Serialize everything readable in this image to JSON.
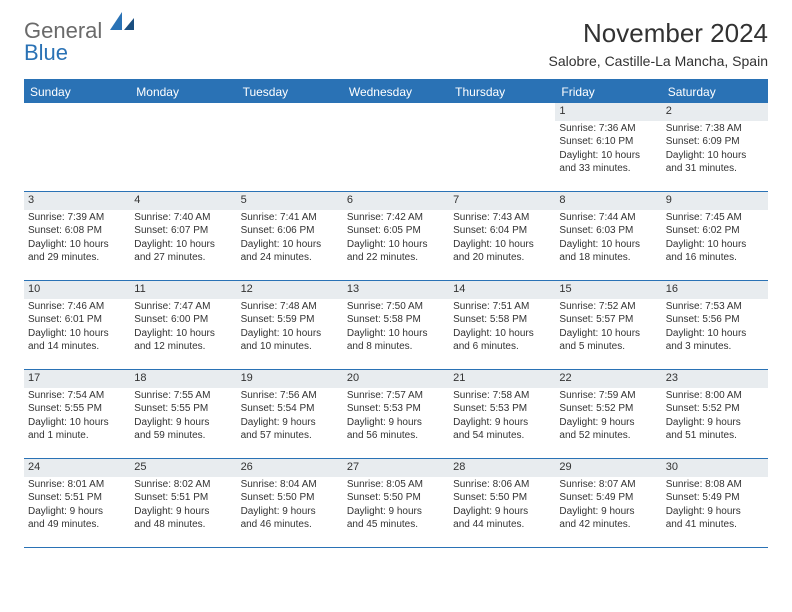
{
  "logo": {
    "line1": "General",
    "line2": "Blue"
  },
  "title": "November 2024",
  "location": "Salobre, Castille-La Mancha, Spain",
  "colors": {
    "header_bg": "#2a72b5",
    "header_text": "#ffffff",
    "datenum_bg": "#e8ecef",
    "border": "#2a72b5",
    "text": "#333333",
    "logo_gray": "#6a6a6a"
  },
  "day_names": [
    "Sunday",
    "Monday",
    "Tuesday",
    "Wednesday",
    "Thursday",
    "Friday",
    "Saturday"
  ],
  "weeks": [
    [
      null,
      null,
      null,
      null,
      null,
      {
        "date": "1",
        "sunrise": "Sunrise: 7:36 AM",
        "sunset": "Sunset: 6:10 PM",
        "day1": "Daylight: 10 hours",
        "day2": "and 33 minutes."
      },
      {
        "date": "2",
        "sunrise": "Sunrise: 7:38 AM",
        "sunset": "Sunset: 6:09 PM",
        "day1": "Daylight: 10 hours",
        "day2": "and 31 minutes."
      }
    ],
    [
      {
        "date": "3",
        "sunrise": "Sunrise: 7:39 AM",
        "sunset": "Sunset: 6:08 PM",
        "day1": "Daylight: 10 hours",
        "day2": "and 29 minutes."
      },
      {
        "date": "4",
        "sunrise": "Sunrise: 7:40 AM",
        "sunset": "Sunset: 6:07 PM",
        "day1": "Daylight: 10 hours",
        "day2": "and 27 minutes."
      },
      {
        "date": "5",
        "sunrise": "Sunrise: 7:41 AM",
        "sunset": "Sunset: 6:06 PM",
        "day1": "Daylight: 10 hours",
        "day2": "and 24 minutes."
      },
      {
        "date": "6",
        "sunrise": "Sunrise: 7:42 AM",
        "sunset": "Sunset: 6:05 PM",
        "day1": "Daylight: 10 hours",
        "day2": "and 22 minutes."
      },
      {
        "date": "7",
        "sunrise": "Sunrise: 7:43 AM",
        "sunset": "Sunset: 6:04 PM",
        "day1": "Daylight: 10 hours",
        "day2": "and 20 minutes."
      },
      {
        "date": "8",
        "sunrise": "Sunrise: 7:44 AM",
        "sunset": "Sunset: 6:03 PM",
        "day1": "Daylight: 10 hours",
        "day2": "and 18 minutes."
      },
      {
        "date": "9",
        "sunrise": "Sunrise: 7:45 AM",
        "sunset": "Sunset: 6:02 PM",
        "day1": "Daylight: 10 hours",
        "day2": "and 16 minutes."
      }
    ],
    [
      {
        "date": "10",
        "sunrise": "Sunrise: 7:46 AM",
        "sunset": "Sunset: 6:01 PM",
        "day1": "Daylight: 10 hours",
        "day2": "and 14 minutes."
      },
      {
        "date": "11",
        "sunrise": "Sunrise: 7:47 AM",
        "sunset": "Sunset: 6:00 PM",
        "day1": "Daylight: 10 hours",
        "day2": "and 12 minutes."
      },
      {
        "date": "12",
        "sunrise": "Sunrise: 7:48 AM",
        "sunset": "Sunset: 5:59 PM",
        "day1": "Daylight: 10 hours",
        "day2": "and 10 minutes."
      },
      {
        "date": "13",
        "sunrise": "Sunrise: 7:50 AM",
        "sunset": "Sunset: 5:58 PM",
        "day1": "Daylight: 10 hours",
        "day2": "and 8 minutes."
      },
      {
        "date": "14",
        "sunrise": "Sunrise: 7:51 AM",
        "sunset": "Sunset: 5:58 PM",
        "day1": "Daylight: 10 hours",
        "day2": "and 6 minutes."
      },
      {
        "date": "15",
        "sunrise": "Sunrise: 7:52 AM",
        "sunset": "Sunset: 5:57 PM",
        "day1": "Daylight: 10 hours",
        "day2": "and 5 minutes."
      },
      {
        "date": "16",
        "sunrise": "Sunrise: 7:53 AM",
        "sunset": "Sunset: 5:56 PM",
        "day1": "Daylight: 10 hours",
        "day2": "and 3 minutes."
      }
    ],
    [
      {
        "date": "17",
        "sunrise": "Sunrise: 7:54 AM",
        "sunset": "Sunset: 5:55 PM",
        "day1": "Daylight: 10 hours",
        "day2": "and 1 minute."
      },
      {
        "date": "18",
        "sunrise": "Sunrise: 7:55 AM",
        "sunset": "Sunset: 5:55 PM",
        "day1": "Daylight: 9 hours",
        "day2": "and 59 minutes."
      },
      {
        "date": "19",
        "sunrise": "Sunrise: 7:56 AM",
        "sunset": "Sunset: 5:54 PM",
        "day1": "Daylight: 9 hours",
        "day2": "and 57 minutes."
      },
      {
        "date": "20",
        "sunrise": "Sunrise: 7:57 AM",
        "sunset": "Sunset: 5:53 PM",
        "day1": "Daylight: 9 hours",
        "day2": "and 56 minutes."
      },
      {
        "date": "21",
        "sunrise": "Sunrise: 7:58 AM",
        "sunset": "Sunset: 5:53 PM",
        "day1": "Daylight: 9 hours",
        "day2": "and 54 minutes."
      },
      {
        "date": "22",
        "sunrise": "Sunrise: 7:59 AM",
        "sunset": "Sunset: 5:52 PM",
        "day1": "Daylight: 9 hours",
        "day2": "and 52 minutes."
      },
      {
        "date": "23",
        "sunrise": "Sunrise: 8:00 AM",
        "sunset": "Sunset: 5:52 PM",
        "day1": "Daylight: 9 hours",
        "day2": "and 51 minutes."
      }
    ],
    [
      {
        "date": "24",
        "sunrise": "Sunrise: 8:01 AM",
        "sunset": "Sunset: 5:51 PM",
        "day1": "Daylight: 9 hours",
        "day2": "and 49 minutes."
      },
      {
        "date": "25",
        "sunrise": "Sunrise: 8:02 AM",
        "sunset": "Sunset: 5:51 PM",
        "day1": "Daylight: 9 hours",
        "day2": "and 48 minutes."
      },
      {
        "date": "26",
        "sunrise": "Sunrise: 8:04 AM",
        "sunset": "Sunset: 5:50 PM",
        "day1": "Daylight: 9 hours",
        "day2": "and 46 minutes."
      },
      {
        "date": "27",
        "sunrise": "Sunrise: 8:05 AM",
        "sunset": "Sunset: 5:50 PM",
        "day1": "Daylight: 9 hours",
        "day2": "and 45 minutes."
      },
      {
        "date": "28",
        "sunrise": "Sunrise: 8:06 AM",
        "sunset": "Sunset: 5:50 PM",
        "day1": "Daylight: 9 hours",
        "day2": "and 44 minutes."
      },
      {
        "date": "29",
        "sunrise": "Sunrise: 8:07 AM",
        "sunset": "Sunset: 5:49 PM",
        "day1": "Daylight: 9 hours",
        "day2": "and 42 minutes."
      },
      {
        "date": "30",
        "sunrise": "Sunrise: 8:08 AM",
        "sunset": "Sunset: 5:49 PM",
        "day1": "Daylight: 9 hours",
        "day2": "and 41 minutes."
      }
    ]
  ]
}
